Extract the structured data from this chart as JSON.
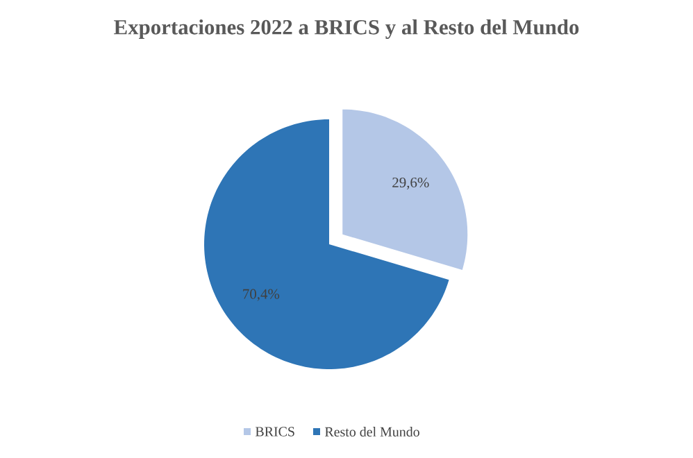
{
  "chart_data": {
    "type": "pie",
    "title": "Exportaciones 2022 a BRICS y al Resto del Mundo",
    "categories": [
      "BRICS",
      "Resto del Mundo"
    ],
    "values": [
      29.6,
      70.4
    ],
    "colors": [
      "#b4c7e7",
      "#2e75b6"
    ],
    "value_labels": [
      "29,6%",
      "70,4%"
    ],
    "legend": "bottom"
  }
}
